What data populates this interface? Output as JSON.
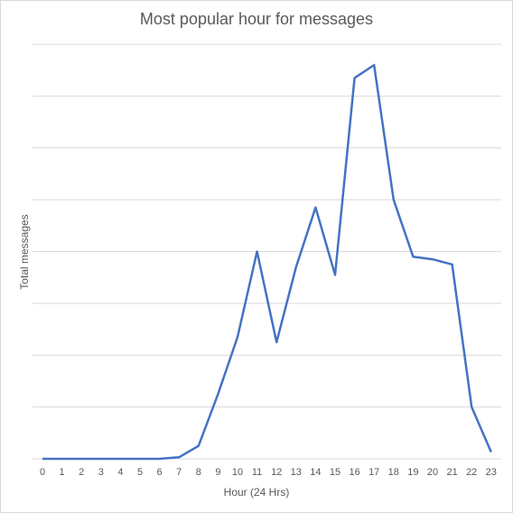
{
  "chart_data": {
    "type": "line",
    "title": "Most popular hour for messages",
    "xlabel": "Hour (24 Hrs)",
    "ylabel": "Total messages",
    "categories": [
      "0",
      "1",
      "2",
      "3",
      "4",
      "5",
      "6",
      "7",
      "8",
      "9",
      "10",
      "11",
      "12",
      "13",
      "14",
      "15",
      "16",
      "17",
      "18",
      "19",
      "20",
      "21",
      "22",
      "23"
    ],
    "series": [
      {
        "values": [
          0,
          0,
          0,
          0,
          0,
          0,
          0,
          0.3,
          2.5,
          12.5,
          23.5,
          40,
          22.5,
          37,
          48.5,
          35.5,
          73.5,
          76,
          50,
          39,
          38.5,
          37.5,
          10,
          1.3
        ]
      }
    ],
    "ylim": [
      0,
      80
    ],
    "gridline_count": 8,
    "y_tick_labels_shown": false,
    "grid": true,
    "legend": "none",
    "line_color": "#4472c4",
    "grid_color": "#d9d9d9"
  }
}
